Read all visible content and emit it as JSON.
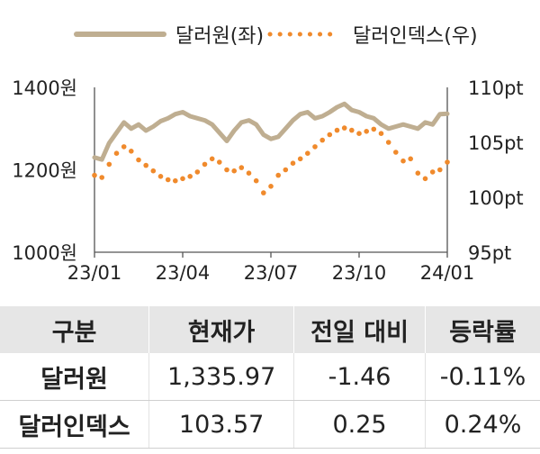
{
  "chart_data": {
    "type": "line",
    "legend": {
      "placement": "top-center"
    },
    "x_ticks": [
      "23/01",
      "23/04",
      "23/07",
      "23/10",
      "24/01"
    ],
    "y_left": {
      "ticks": [
        "1400원",
        "1200원",
        "1000원"
      ],
      "range": [
        1000,
        1400
      ]
    },
    "y_right": {
      "ticks": [
        "110pt",
        "105pt",
        "100pt",
        "95pt"
      ],
      "range": [
        95,
        110
      ]
    },
    "x_range": [
      0,
      12
    ],
    "series": [
      {
        "name": "달러원(좌)",
        "axis": "left",
        "style": "solid",
        "color": "#bfae91",
        "x": [
          0,
          0.25,
          0.5,
          0.75,
          1,
          1.25,
          1.5,
          1.75,
          2,
          2.25,
          2.5,
          2.75,
          3,
          3.25,
          3.5,
          3.75,
          4,
          4.25,
          4.5,
          4.75,
          5,
          5.25,
          5.5,
          5.75,
          6,
          6.25,
          6.5,
          6.75,
          7,
          7.25,
          7.5,
          7.75,
          8,
          8.25,
          8.5,
          8.75,
          9,
          9.25,
          9.5,
          9.75,
          10,
          10.25,
          10.5,
          10.75,
          11,
          11.25,
          11.5,
          11.75,
          12
        ],
        "values": [
          1230,
          1225,
          1265,
          1290,
          1315,
          1300,
          1310,
          1295,
          1305,
          1318,
          1325,
          1335,
          1340,
          1330,
          1325,
          1320,
          1310,
          1290,
          1270,
          1295,
          1315,
          1320,
          1310,
          1285,
          1275,
          1280,
          1300,
          1320,
          1335,
          1340,
          1325,
          1330,
          1340,
          1352,
          1360,
          1345,
          1340,
          1330,
          1325,
          1310,
          1300,
          1305,
          1310,
          1305,
          1300,
          1315,
          1310,
          1335,
          1336
        ]
      },
      {
        "name": "달러인덱스(우)",
        "axis": "right",
        "style": "dotted",
        "color": "#f08a2c",
        "x": [
          0,
          0.25,
          0.5,
          0.75,
          1,
          1.25,
          1.5,
          1.75,
          2,
          2.25,
          2.5,
          2.75,
          3,
          3.25,
          3.5,
          3.75,
          4,
          4.25,
          4.5,
          4.75,
          5,
          5.25,
          5.5,
          5.75,
          6,
          6.25,
          6.5,
          6.75,
          7,
          7.25,
          7.5,
          7.75,
          8,
          8.25,
          8.5,
          8.75,
          9,
          9.25,
          9.5,
          9.75,
          10,
          10.25,
          10.5,
          10.75,
          11,
          11.25,
          11.5,
          11.75,
          12
        ],
        "values": [
          102,
          101.8,
          103,
          104,
          104.6,
          104.2,
          103.4,
          102.9,
          102.4,
          101.9,
          101.6,
          101.5,
          101.7,
          101.9,
          102.3,
          103,
          103.5,
          103.2,
          102.5,
          102.4,
          102.7,
          102.2,
          101.5,
          100.4,
          101,
          102,
          102.5,
          103.1,
          103.5,
          104,
          104.6,
          105.2,
          105.7,
          106.1,
          106.3,
          106.1,
          105.8,
          106.0,
          106.2,
          105.8,
          105.0,
          104.1,
          103.3,
          103.5,
          102.2,
          101.7,
          102.3,
          102.5,
          103.2
        ]
      }
    ]
  },
  "table": {
    "headers": [
      "구분",
      "현재가",
      "전일 대비",
      "등락률"
    ],
    "rows": [
      [
        "달러원",
        "1,335.97",
        "-1.46",
        "-0.11%"
      ],
      [
        "달러인덱스",
        "103.57",
        "0.25",
        "0.24%"
      ]
    ]
  }
}
